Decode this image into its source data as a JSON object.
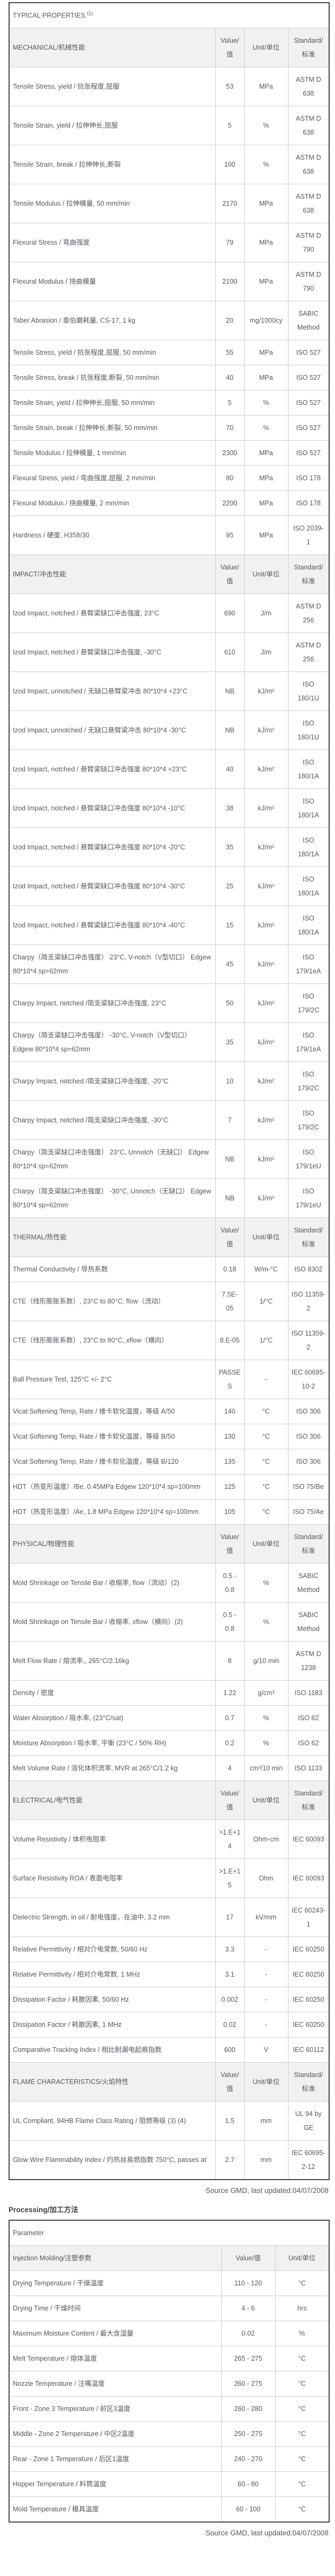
{
  "colors": {
    "text": "#55575c",
    "heading_text": "#3e4045",
    "inner_border": "#cfcfcf",
    "outer_border": "#454545",
    "section_header_bg": "#f1f1f1",
    "row_bg": "#ffffff"
  },
  "typical_properties": {
    "title": "TYPICAL PROPERTIES",
    "title_sup": "(1)",
    "col_headers": {
      "value": "Value/值",
      "unit": "Unit/单位",
      "standard": "Standard/标准"
    },
    "sections": [
      {
        "name": "MECHANICAL/机械性能",
        "rows": [
          {
            "property": "Tensile Stress, yield / 抗张程度,屈服",
            "value": "53",
            "unit": "MPa",
            "standard": "ASTM D 638"
          },
          {
            "property": "Tensile Strain, yield / 拉伸伸长,屈服",
            "value": "5",
            "unit": "%",
            "standard": "ASTM D 638"
          },
          {
            "property": "Tensile Strain, break / 拉伸伸长,断裂",
            "value": "100",
            "unit": "%",
            "standard": "ASTM D 638"
          },
          {
            "property": "Tensile Modulus / 拉伸模量, 50 mm/min",
            "value": "2170",
            "unit": "MPa",
            "standard": "ASTM D 638"
          },
          {
            "property": "Flexural Stress / 弯曲强度",
            "value": "79",
            "unit": "MPa",
            "standard": "ASTM D 790"
          },
          {
            "property": "Flexural Modulus / 挠曲模量",
            "value": "2100",
            "unit": "MPa",
            "standard": "ASTM D 790"
          },
          {
            "property": "Taber Abrasion / 泰伯磨耗量, CS-17, 1 kg",
            "value": "20",
            "unit": "mg/1000cy",
            "standard": "SABIC Method"
          },
          {
            "property": "Tensile Stress, yield / 抗张程度,屈服, 50 mm/min",
            "value": "55",
            "unit": "MPa",
            "standard": "ISO 527"
          },
          {
            "property": "Tensile Stress, break / 抗张程度,断裂, 50 mm/min",
            "value": "40",
            "unit": "MPa",
            "standard": "ISO 527"
          },
          {
            "property": "Tensile Strain, yield / 拉伸伸长,屈服, 50 mm/min",
            "value": "5",
            "unit": "%",
            "standard": "ISO 527"
          },
          {
            "property": "Tensile Strain, break / 拉伸伸长,断裂, 50 mm/min",
            "value": "70",
            "unit": "%",
            "standard": "ISO 527"
          },
          {
            "property": "Tensile Modulus / 拉伸模量, 1 mm/min",
            "value": "2300",
            "unit": "MPa",
            "standard": "ISO 527"
          },
          {
            "property": "Flexural Stress, yield / 弯曲强度,屈服, 2 mm/min",
            "value": "80",
            "unit": "MPa",
            "standard": "ISO 178"
          },
          {
            "property": "Flexural Modulus / 挠曲模量, 2 mm/min",
            "value": "2200",
            "unit": "MPa",
            "standard": "ISO 178"
          },
          {
            "property": "Hardness / 硬度, H358/30",
            "value": "95",
            "unit": "MPa",
            "standard": "ISO 2039-1"
          }
        ]
      },
      {
        "name": "IMPACT/冲击性能",
        "rows": [
          {
            "property": "Izod Impact, notched / 悬臂梁缺口冲击强度, 23°C",
            "value": "690",
            "unit": "J/m",
            "standard": "ASTM D 256"
          },
          {
            "property": "Izod Impact, notched / 悬臂梁缺口冲击强度, -30°C",
            "value": "610",
            "unit": "J/m",
            "standard": "ASTM D 256"
          },
          {
            "property": "Izod Impact, unnotched / 无缺口悬臂梁冲击 80*10*4 +23°C",
            "value": "NB",
            "unit": "kJ/m²",
            "standard": "ISO 180/1U"
          },
          {
            "property": "Izod Impact, unnotched / 无缺口悬臂梁冲击 80*10*4 -30°C",
            "value": "NB",
            "unit": "kJ/m²",
            "standard": "ISO 180/1U"
          },
          {
            "property": "Izod Impact, notched / 悬臂梁缺口冲击强度 80*10*4 +23°C",
            "value": "40",
            "unit": "kJ/m²",
            "standard": "ISO 180/1A"
          },
          {
            "property": "Izod Impact, notched / 悬臂梁缺口冲击强度 80*10*4 -10°C",
            "value": "38",
            "unit": "kJ/m²",
            "standard": "ISO 180/1A"
          },
          {
            "property": "Izod Impact, notched / 悬臂梁缺口冲击强度 80*10*4 -20°C",
            "value": "35",
            "unit": "kJ/m²",
            "standard": "ISO 180/1A"
          },
          {
            "property": "Izod Impact, notched / 悬臂梁缺口冲击强度 80*10*4 -30°C",
            "value": "25",
            "unit": "kJ/m²",
            "standard": "ISO 180/1A"
          },
          {
            "property": "Izod Impact, notched / 悬臂梁缺口冲击强度 80*10*4 -40°C",
            "value": "15",
            "unit": "kJ/m²",
            "standard": "ISO 180/1A"
          },
          {
            "property": "Charpy（简支梁缺口冲击强度） 23°C, V-notch（V型切口） Edgew 80*10*4 sp=62mm",
            "value": "45",
            "unit": "kJ/m²",
            "standard": "ISO 179/1eA"
          },
          {
            "property": "Charpy Impact, notched /简支梁缺口冲击强度, 23°C",
            "value": "50",
            "unit": "kJ/m²",
            "standard": "ISO 179/2C"
          },
          {
            "property": "Charpy（简支梁缺口冲击强度） -30°C, V-notch（V型切口） Edgew 80*10*4 sp=62mm",
            "value": "35",
            "unit": "kJ/m²",
            "standard": "ISO 179/1eA"
          },
          {
            "property": "Charpy Impact, notched /简支梁缺口冲击强度, -20°C",
            "value": "10",
            "unit": "kJ/m²",
            "standard": "ISO 179/2C"
          },
          {
            "property": "Charpy Impact, notched /简支梁缺口冲击强度, -30°C",
            "value": "7",
            "unit": "kJ/m²",
            "standard": "ISO 179/2C"
          },
          {
            "property": "Charpy（简支梁缺口冲击强度） 23°C, Unnotch（无缺口） Edgew 80*10*4 sp=62mm",
            "value": "NB",
            "unit": "kJ/m²",
            "standard": "ISO 179/1eU"
          },
          {
            "property": "Charpy（简支梁缺口冲击强度） -30°C, Unnotch（无缺口） Edgew 80*10*4 sp=62mm",
            "value": "NB",
            "unit": "kJ/m²",
            "standard": "ISO 179/1eU"
          }
        ]
      },
      {
        "name": "THERMAL/热性能",
        "rows": [
          {
            "property": "Thermal Conductivity / 导热系数",
            "value": "0.18",
            "unit": "W/m-°C",
            "standard": "ISO 8302"
          },
          {
            "property": "CTE（线形膨胀系数）, 23°C to 80°C, flow（流动）",
            "value": "7.5E-05",
            "unit": "1/°C",
            "standard": "ISO 11359-2"
          },
          {
            "property": "CTE（线形膨胀系数）, 23°C to 80°C, xflow（横向）",
            "value": "8.E-05",
            "unit": "1/°C",
            "standard": "ISO 11359-2"
          },
          {
            "property": "Ball Pressure Test, 125°C +/- 2°C",
            "value": "PASSES",
            "unit": "-",
            "standard": "IEC 60695-10-2"
          },
          {
            "property": "Vicat Softening Temp, Rate / 维卡软化温度，等级 A/50",
            "value": "140",
            "unit": "°C",
            "standard": "ISO 306"
          },
          {
            "property": "Vicat Softening Temp, Rate / 维卡软化温度，等级 B/50",
            "value": "130",
            "unit": "°C",
            "standard": "ISO 306"
          },
          {
            "property": "Vicat Softening Temp, Rate / 维卡软化温度，等级 B/120",
            "value": "135",
            "unit": "°C",
            "standard": "ISO 306"
          },
          {
            "property": "HDT（热变形温度）/Be, 0.45MPa Edgew 120*10*4 sp=100mm",
            "value": "125",
            "unit": "°C",
            "standard": "ISO 75/Be"
          },
          {
            "property": "HDT（热变形温度）/Ae, 1.8 MPa Edgew 120*10*4 sp=100mm",
            "value": "105",
            "unit": "°C",
            "standard": "ISO 75/Ae"
          }
        ]
      },
      {
        "name": "PHYSICAL/物理性能",
        "rows": [
          {
            "property": "Mold Shrinkage on Tensile Bar / 收缩率, flow（流动）(2)",
            "value": "0.5 - 0.8",
            "unit": "%",
            "standard": "SABIC Method"
          },
          {
            "property": "Mold Shrinkage on Tensile Bar / 收缩率, xflow（横向）(2)",
            "value": "0.5 - 0.8",
            "unit": "%",
            "standard": "SABIC Method"
          },
          {
            "property": "Melt Flow Rate / 熔流率,, 265°C/2.16kg",
            "value": "8",
            "unit": "g/10 min",
            "standard": "ASTM D 1238"
          },
          {
            "property": "Density / 密度",
            "value": "1.22",
            "unit": "g/cm³",
            "standard": "ISO 1183"
          },
          {
            "property": "Water Absorption / 吸水率, (23°C/sat)",
            "value": "0.7",
            "unit": "%",
            "standard": "ISO 62"
          },
          {
            "property": "Moisture Absorption / 吸水率, 平衡 (23°C / 50% RH)",
            "value": "0.2",
            "unit": "%",
            "standard": "ISO 62"
          },
          {
            "property": "Melt Volume Rate / 溶化体积流率, MVR at 265°C/1.2 kg",
            "value": "4",
            "unit": "cm³/10 min",
            "standard": "ISO 1133"
          }
        ]
      },
      {
        "name": "ELECTRICAL/电气性能",
        "rows": [
          {
            "property": "Volume Resistivity / 体积电阻率",
            "value": ">1.E+14",
            "unit": "Ohm-cm",
            "standard": "IEC 60093"
          },
          {
            "property": "Surface Resistivity ROA / 表面电阻率",
            "value": ">1.E+15",
            "unit": "Ohm",
            "standard": "IEC 60093"
          },
          {
            "property": "Dielectric Strength, in oil / 耐电强度，在油中, 3.2 mm",
            "value": "17",
            "unit": "kV/mm",
            "standard": "IEC 60243-1"
          },
          {
            "property": "Relative Permittivity / 相对介电常数, 50/60 Hz",
            "value": "3.3",
            "unit": "-",
            "standard": "IEC 60250"
          },
          {
            "property": "Relative Permittivity / 相对介电常数, 1 MHz",
            "value": "3.1",
            "unit": "-",
            "standard": "IEC 60250"
          },
          {
            "property": "Dissipation Factor / 耗散因素, 50/60 Hz",
            "value": "0.002",
            "unit": "-",
            "standard": "IEC 60250"
          },
          {
            "property": "Dissipation Factor / 耗散因素, 1 MHz",
            "value": "0.02",
            "unit": "-",
            "standard": "IEC 60250"
          },
          {
            "property": "Comparative Tracking Index / 相比耐漏电起痕指数",
            "value": "600",
            "unit": "V",
            "standard": "IEC 60112"
          }
        ]
      },
      {
        "name": "FLAME CHARACTERISTICS/火焰特性",
        "rows": [
          {
            "property": "UL Compliant, 94HB Flame Class Rating / 阻燃等级 (3) (4)",
            "value": "1.5",
            "unit": "mm",
            "standard": "UL 94 by GE"
          },
          {
            "property": "Glow Wire Flammability Index / 灼热丝易燃指数 750°C, passes at",
            "value": "2.7",
            "unit": "mm",
            "standard": "IEC 60695-2-12"
          }
        ]
      }
    ]
  },
  "source_note": "Source GMD, last updated:04/07/2008",
  "processing": {
    "title": "Processing/加工方法",
    "param_header": "Parameter",
    "subheader": {
      "label": "Injection Molding/注塑参数",
      "value": "Value/值",
      "unit": "Unit/单位"
    },
    "rows": [
      {
        "parameter": "Drying Temperature / 干燥温度",
        "value": "110 - 120",
        "unit": "°C"
      },
      {
        "parameter": "Drying Time / 干燥时间",
        "value": "4 - 6",
        "unit": "hrs"
      },
      {
        "parameter": "Maximum Moisture Content / 最大含湿量",
        "value": "0.02",
        "unit": "%"
      },
      {
        "parameter": "Melt Temperature / 熔体温度",
        "value": "265 - 275",
        "unit": "°C"
      },
      {
        "parameter": "Nozzle Temperature / 注嘴温度",
        "value": "260 - 275",
        "unit": "°C"
      },
      {
        "parameter": "Front - Zone 3 Temperature / 前区3温度",
        "value": "260 - 280",
        "unit": "°C"
      },
      {
        "parameter": "Middle - Zone 2 Temperature / 中区2温度",
        "value": "250 - 275",
        "unit": "°C"
      },
      {
        "parameter": "Rear - Zone 1 Temperature / 后区1温度",
        "value": "240 - 270",
        "unit": "°C"
      },
      {
        "parameter": "Hopper Temperature / 料筒温度",
        "value": "60 - 80",
        "unit": "°C"
      },
      {
        "parameter": "Mold Temperature / 模具温度",
        "value": "60 - 100",
        "unit": "°C"
      }
    ]
  },
  "source_note_2": "Source GMD, last updated:04/07/2008"
}
